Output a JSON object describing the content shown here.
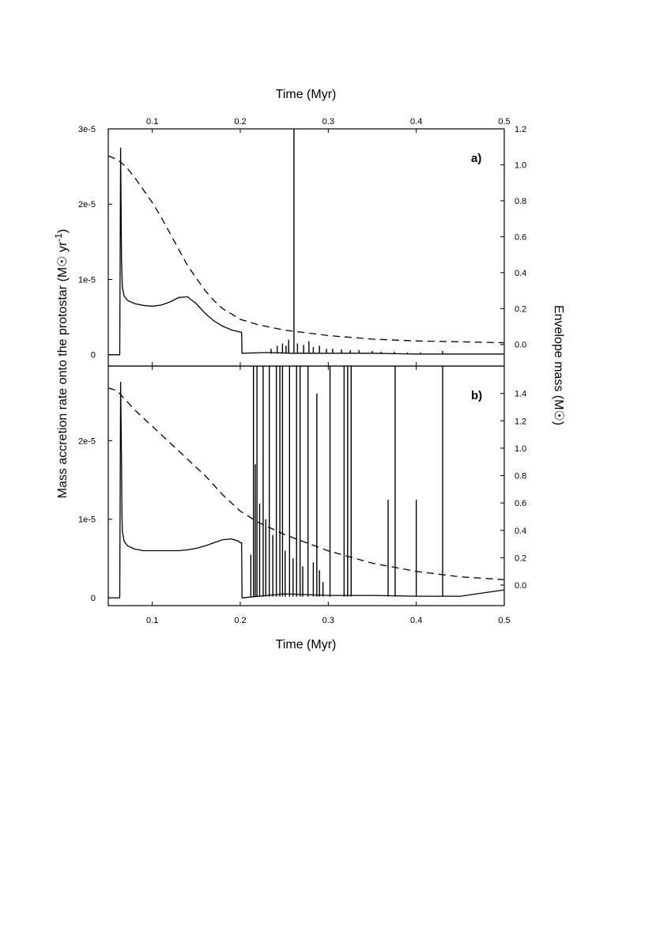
{
  "chart_data": {
    "type": "line",
    "top_axis_title": "Time (Myr)",
    "x_title": "Time (Myr)",
    "y_left_title": [
      "Mass accretion rate onto the protostar (M",
      "☉",
      " yr",
      "-1",
      ")"
    ],
    "y_right_title": [
      "Envelope mass (M",
      "☉",
      ")"
    ],
    "xlim": [
      0.05,
      0.5
    ],
    "x_ticks": [
      0.1,
      0.2,
      0.3,
      0.4,
      0.5
    ],
    "x_tick_labels": [
      "0.1",
      "0.2",
      "0.3",
      "0.4",
      "0.5"
    ],
    "panels": [
      {
        "label": "a)",
        "y_left_lim": [
          -1.5e-06,
          3e-05
        ],
        "y_left_ticks": [
          0,
          1e-05,
          2e-05,
          3e-05
        ],
        "y_left_tick_labels": [
          "0",
          "1e-5",
          "2e-5",
          "3e-5"
        ],
        "y_right_lim": [
          -0.12,
          1.2
        ],
        "y_right_ticks": [
          0.0,
          0.2,
          0.4,
          0.6,
          0.8,
          1.0,
          1.2
        ],
        "y_right_tick_labels": [
          "0.0",
          "0.2",
          "0.4",
          "0.6",
          "0.8",
          "1.0",
          "1.2"
        ],
        "accretion_rate": {
          "axis": "left",
          "style": "solid",
          "x": [
            0.05,
            0.063,
            0.064,
            0.065,
            0.0655,
            0.066,
            0.068,
            0.072,
            0.08,
            0.09,
            0.1,
            0.11,
            0.12,
            0.13,
            0.14,
            0.15,
            0.16,
            0.17,
            0.18,
            0.19,
            0.2,
            0.2015,
            0.202,
            0.23,
            0.26,
            0.28,
            0.3,
            0.35,
            0.4,
            0.45,
            0.5
          ],
          "y": [
            0,
            0,
            2.75e-05,
            1.3e-05,
            1.05e-05,
            9e-06,
            7.8e-06,
            7.2e-06,
            6.8e-06,
            6.55e-06,
            6.45e-06,
            6.6e-06,
            7e-06,
            7.6e-06,
            7.7e-06,
            6.8e-06,
            5.5e-06,
            4.5e-06,
            3.8e-06,
            3.3e-06,
            3e-06,
            3e-06,
            2e-07,
            3e-07,
            2e-07,
            2e-07,
            2e-07,
            2e-07,
            1e-07,
            1e-07,
            1e-07
          ]
        },
        "accretion_bursts": {
          "axis": "left",
          "style": "solid",
          "x": [
            0.235,
            0.242,
            0.248,
            0.252,
            0.255,
            0.261,
            0.265,
            0.272,
            0.278,
            0.283,
            0.29,
            0.298,
            0.305,
            0.315,
            0.325,
            0.335,
            0.35,
            0.36,
            0.375,
            0.39,
            0.405,
            0.43
          ],
          "y": [
            8e-07,
            1.2e-06,
            1.5e-06,
            1.2e-06,
            2e-06,
            3e-05,
            1.5e-06,
            1.3e-06,
            1.8e-06,
            1e-06,
            1.2e-06,
            8e-07,
            8e-07,
            7e-07,
            6e-07,
            6e-07,
            5e-07,
            4e-07,
            4e-07,
            3e-07,
            3e-07,
            5e-07
          ]
        },
        "envelope_mass": {
          "axis": "right",
          "style": "dashed",
          "x": [
            0.05,
            0.06,
            0.07,
            0.08,
            0.09,
            0.1,
            0.11,
            0.12,
            0.13,
            0.14,
            0.15,
            0.16,
            0.17,
            0.18,
            0.19,
            0.2,
            0.22,
            0.25,
            0.3,
            0.35,
            0.4,
            0.45,
            0.5
          ],
          "y": [
            1.05,
            1.03,
            0.99,
            0.93,
            0.86,
            0.79,
            0.71,
            0.62,
            0.53,
            0.44,
            0.37,
            0.3,
            0.245,
            0.2,
            0.17,
            0.14,
            0.11,
            0.08,
            0.05,
            0.03,
            0.02,
            0.015,
            0.01
          ]
        }
      },
      {
        "label": "b)",
        "y_left_lim": [
          -1e-06,
          2.95e-05
        ],
        "y_left_ticks": [
          0,
          1e-05,
          2e-05
        ],
        "y_left_tick_labels": [
          "0",
          "1e-5",
          "2e-5"
        ],
        "y_right_lim": [
          -0.15,
          1.6
        ],
        "y_right_ticks": [
          0.0,
          0.2,
          0.4,
          0.6,
          0.8,
          1.0,
          1.2,
          1.4
        ],
        "y_right_tick_labels": [
          "0.0",
          "0.2",
          "0.4",
          "0.6",
          "0.8",
          "1.0",
          "1.2",
          "1.4"
        ],
        "accretion_rate": {
          "axis": "left",
          "style": "solid",
          "x": [
            0.05,
            0.063,
            0.064,
            0.065,
            0.0655,
            0.066,
            0.068,
            0.072,
            0.08,
            0.09,
            0.1,
            0.11,
            0.12,
            0.13,
            0.14,
            0.15,
            0.16,
            0.17,
            0.18,
            0.19,
            0.198,
            0.2,
            0.2015,
            0.202,
            0.25,
            0.3,
            0.35,
            0.4,
            0.45,
            0.5
          ],
          "y": [
            0,
            0,
            2.75e-05,
            1.8e-05,
            1.05e-05,
            8.5e-06,
            7.2e-06,
            6.6e-06,
            6.2e-06,
            6e-06,
            6e-06,
            6e-06,
            6e-06,
            6e-06,
            6.1e-06,
            6.3e-06,
            6.6e-06,
            7e-06,
            7.4e-06,
            7.5e-06,
            7.2e-06,
            7e-06,
            7e-06,
            0.0,
            5e-07,
            3e-07,
            3e-07,
            2e-07,
            2e-07,
            1e-06
          ]
        },
        "accretion_bursts": {
          "axis": "left",
          "style": "solid",
          "x": [
            0.212,
            0.215,
            0.217,
            0.219,
            0.222,
            0.226,
            0.229,
            0.233,
            0.237,
            0.241,
            0.245,
            0.248,
            0.251,
            0.256,
            0.26,
            0.264,
            0.268,
            0.271,
            0.277,
            0.283,
            0.287,
            0.29,
            0.294,
            0.302,
            0.318,
            0.322,
            0.326,
            0.368,
            0.376,
            0.4,
            0.43
          ],
          "y": [
            5.5e-06,
            2.95e-05,
            1.7e-05,
            2.95e-05,
            1.2e-05,
            2.95e-05,
            1e-05,
            2.95e-05,
            8e-06,
            2.95e-05,
            2.95e-05,
            2.95e-05,
            6e-06,
            2.95e-05,
            5e-06,
            2.95e-05,
            2.95e-05,
            4e-06,
            2.95e-05,
            4.5e-06,
            2.6e-05,
            3.5e-06,
            2e-06,
            2.95e-05,
            2.95e-05,
            2.95e-05,
            2.95e-05,
            1.25e-05,
            2.95e-05,
            1.25e-05,
            2.95e-05
          ]
        },
        "envelope_mass": {
          "axis": "right",
          "style": "dashed",
          "x": [
            0.05,
            0.06,
            0.07,
            0.08,
            0.09,
            0.1,
            0.11,
            0.12,
            0.13,
            0.14,
            0.15,
            0.16,
            0.17,
            0.18,
            0.19,
            0.2,
            0.22,
            0.25,
            0.3,
            0.35,
            0.4,
            0.45,
            0.5
          ],
          "y": [
            1.44,
            1.42,
            1.35,
            1.28,
            1.22,
            1.16,
            1.1,
            1.04,
            0.98,
            0.92,
            0.86,
            0.8,
            0.73,
            0.66,
            0.6,
            0.54,
            0.46,
            0.37,
            0.25,
            0.16,
            0.1,
            0.06,
            0.04
          ]
        }
      }
    ]
  }
}
